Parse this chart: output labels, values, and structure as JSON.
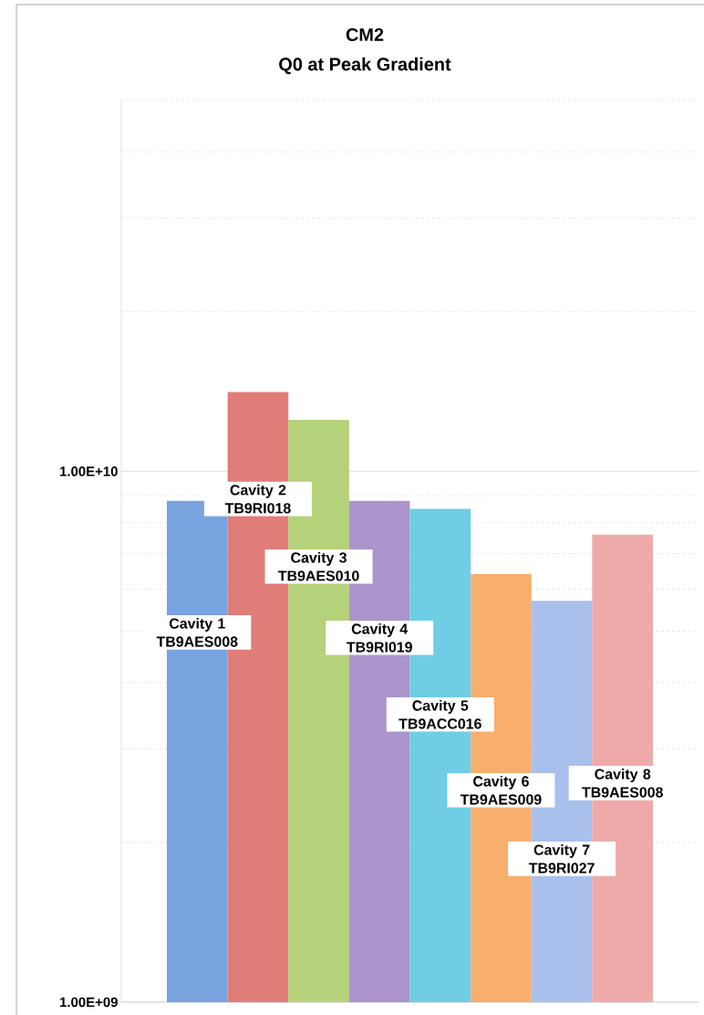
{
  "chart_data": {
    "type": "bar",
    "title": "CM2",
    "subtitle": "Q0 at Peak Gradient",
    "categories": [
      "Cavity 1 TB9AES008",
      "Cavity 2 TB9RI018",
      "Cavity 3 TB9AES010",
      "Cavity 4 TB9RI019",
      "Cavity 5 TB9ACC016",
      "Cavity 6 TB9AES009",
      "Cavity 7 TB9RI027",
      "Cavity 8 TB9AES008"
    ],
    "values": [
      8800000000.0,
      14100000000.0,
      12500000000.0,
      8800000000.0,
      8500000000.0,
      6400000000.0,
      5700000000.0,
      7600000000.0
    ],
    "colors": [
      "#78a3df",
      "#e07d78",
      "#b5d27a",
      "#ab95cc",
      "#6fcde6",
      "#f8ae6d",
      "#a9c0ec",
      "#eeaaa8"
    ],
    "log": "y",
    "ylim": [
      1000000000.0,
      50000000000.0
    ],
    "yticks": [
      {
        "value": 1000000000.0,
        "label": "1.00E+09"
      },
      {
        "value": 10000000000.0,
        "label": "1.00E+10"
      }
    ],
    "grid": "y"
  }
}
